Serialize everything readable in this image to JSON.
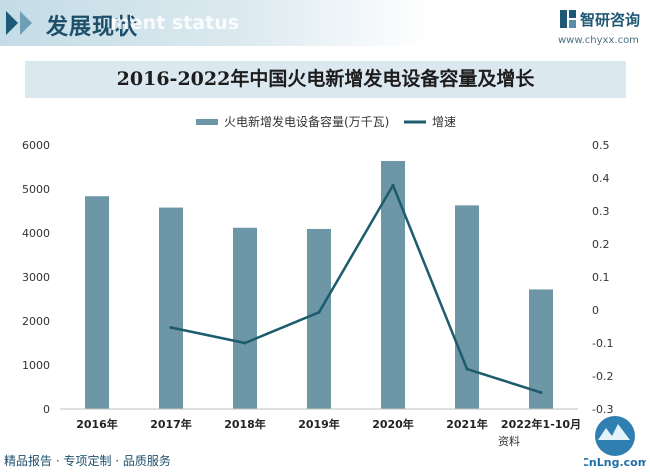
{
  "header": {
    "section_title": "发展现状",
    "watermark_text": "ment status"
  },
  "brand": {
    "name": "智研咨询",
    "url": "www.chyxx.com",
    "logo_icon": "zhiyan-logo-icon"
  },
  "footer": {
    "tagline": "精品报告 · 专项定制 · 品质服务",
    "source_prefix": "资料"
  },
  "corner_logo": {
    "label": "CnLng.com"
  },
  "colors": {
    "bar": "#6d97a6",
    "line": "#1c5c6c",
    "banner": "#dbe8f0",
    "accent": "#1d5a78"
  },
  "chart_data": {
    "type": "bar",
    "title": "2016-2022年中国火电新增发电设备容量及增长",
    "categories": [
      "2016年",
      "2017年",
      "2018年",
      "2019年",
      "2020年",
      "2021年",
      "2022年1-10月"
    ],
    "series": [
      {
        "name": "火电新增发电设备容量(万千瓦)",
        "type": "bar",
        "axis": "left",
        "values": [
          4836,
          4578,
          4119,
          4092,
          5637,
          4628,
          2717
        ]
      },
      {
        "name": "增速",
        "type": "line",
        "axis": "right",
        "values": [
          null,
          -0.053,
          -0.1,
          -0.007,
          0.378,
          -0.179,
          -0.25
        ]
      }
    ],
    "ylim": [
      0,
      6000
    ],
    "yticks": [
      0,
      1000,
      2000,
      3000,
      4000,
      5000,
      6000
    ],
    "y2lim": [
      -0.3,
      0.5
    ],
    "y2ticks": [
      "-0.3",
      "-0.2",
      "-0.1",
      "0",
      "0.1",
      "0.2",
      "0.3",
      "0.4",
      "0.5"
    ],
    "legend_position": "top-center",
    "grid": false
  }
}
